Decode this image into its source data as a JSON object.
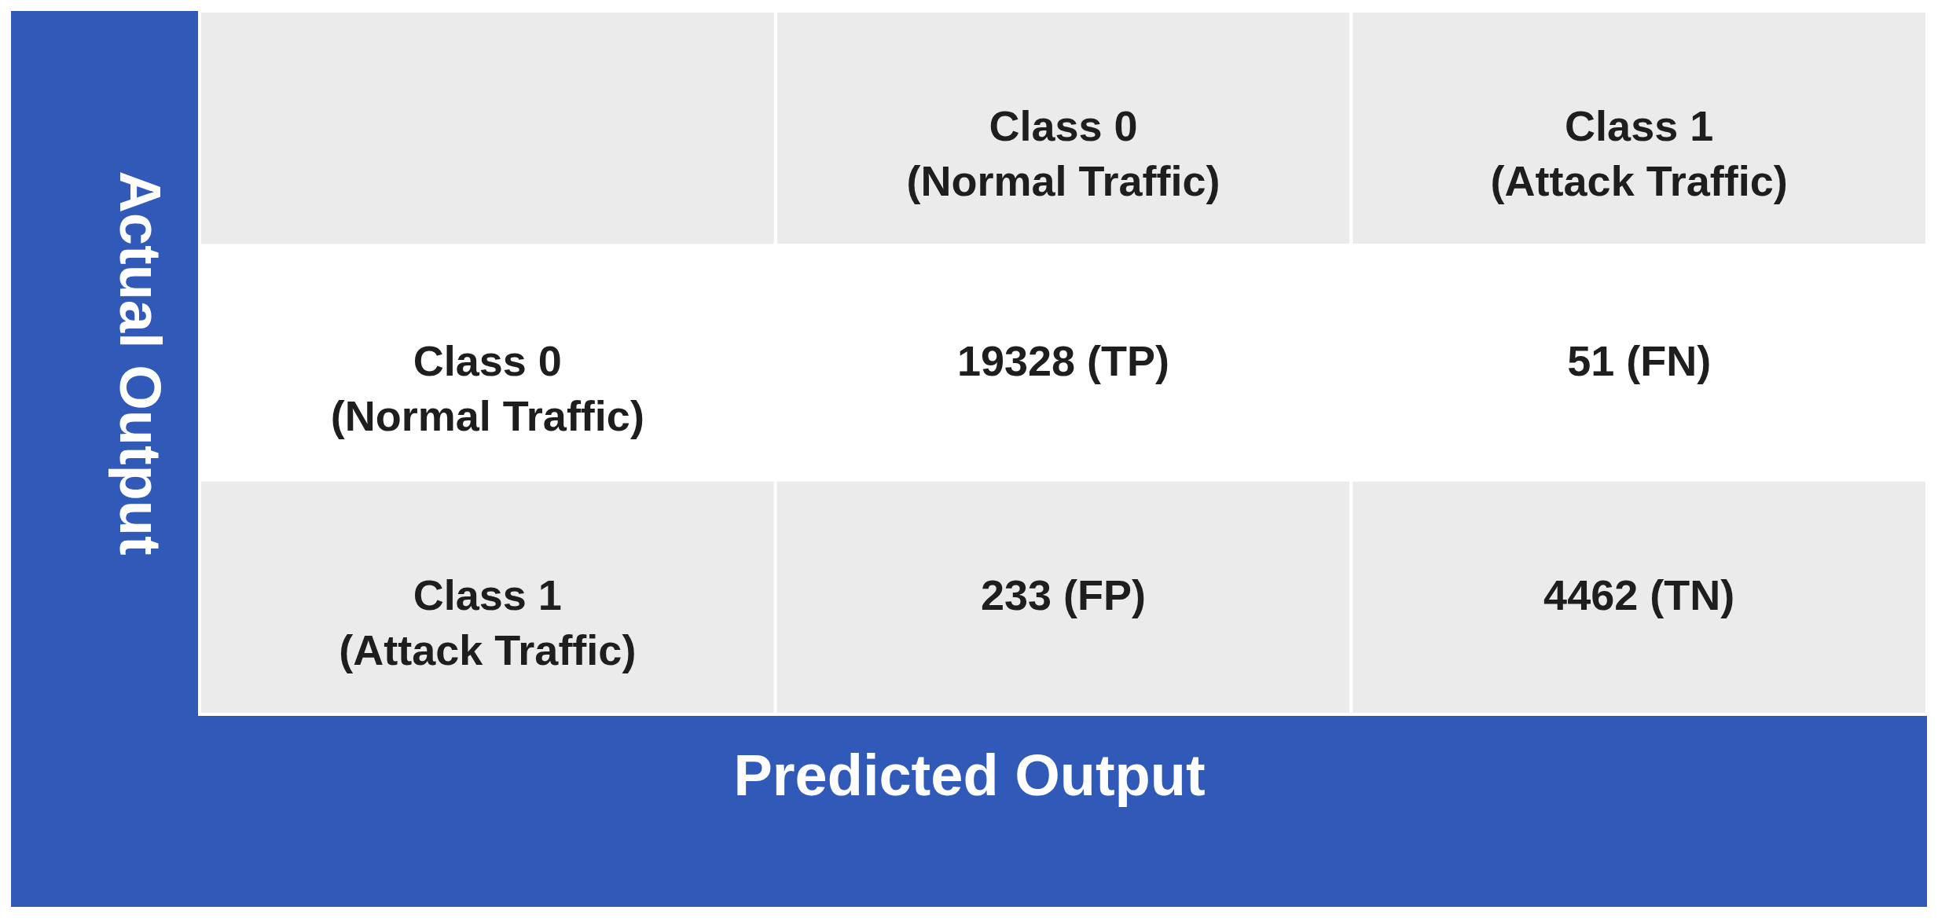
{
  "chart_data": {
    "type": "heatmap",
    "xlabel": "Predicted Output",
    "ylabel": "Actual Output",
    "categories": [
      "Class 0 (Normal Traffic)",
      "Class 1 (Attack Traffic)"
    ],
    "y_categories": [
      "Class 0 (Normal Traffic)",
      "Class 1 (Attack Traffic)"
    ],
    "cells": [
      [
        19328,
        51
      ],
      [
        233,
        4462
      ]
    ],
    "cell_labels": [
      [
        "19328 (TP)",
        "51 (FN)"
      ],
      [
        "233 (FP)",
        "4462 (TN)"
      ]
    ]
  }
}
